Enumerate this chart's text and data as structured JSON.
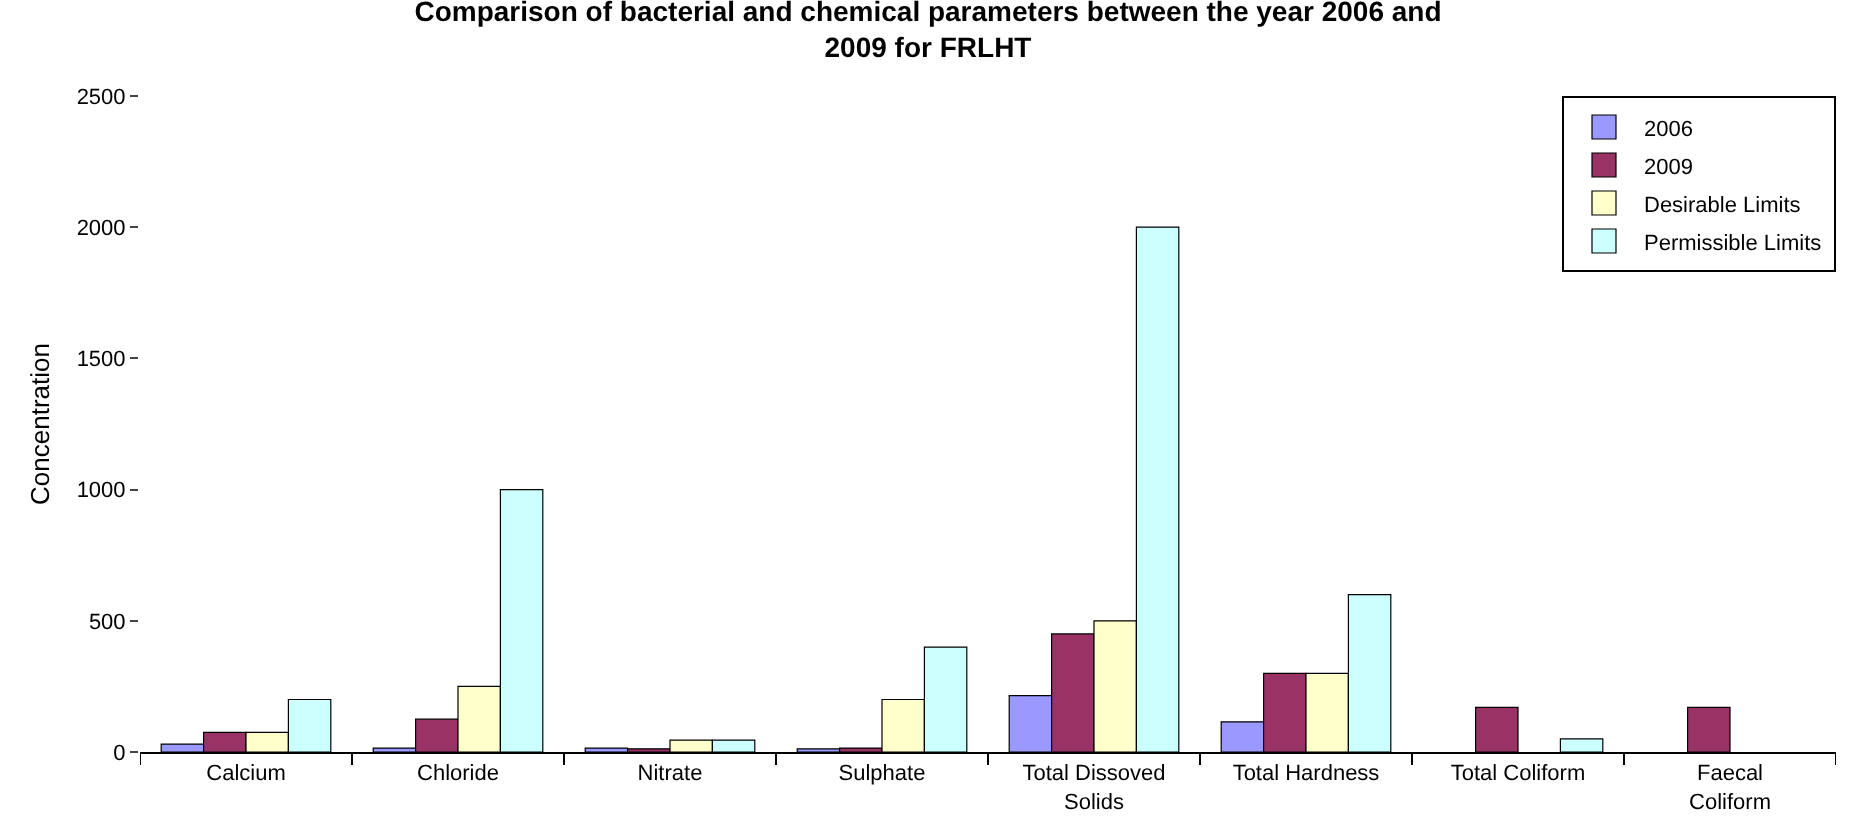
{
  "chart_data": {
    "type": "bar",
    "title": "Comparison of bacterial and chemical parameters between the year 2006 and 2009 for FRLHT",
    "ylabel": "Concentration",
    "categories": [
      "Calcium",
      "Chloride",
      "Nitrate",
      "Sulphate",
      "Total Dissoved Solids",
      "Total Hardness",
      "Total Coliform",
      "Faecal Coliform"
    ],
    "series": [
      {
        "name": "2006",
        "color": "#9999ff",
        "values": [
          30,
          15,
          15,
          12,
          215,
          115,
          null,
          null
        ]
      },
      {
        "name": "2009",
        "color": "#993366",
        "values": [
          75,
          125,
          12,
          15,
          450,
          300,
          170,
          170
        ]
      },
      {
        "name": "Desirable Limits",
        "color": "#ffffcc",
        "values": [
          75,
          250,
          45,
          200,
          500,
          300,
          null,
          null
        ]
      },
      {
        "name": "Permissible Limits",
        "color": "#ccffff",
        "values": [
          200,
          1000,
          45,
          400,
          2000,
          600,
          50,
          null
        ]
      }
    ],
    "ylim": [
      0,
      2500
    ],
    "yticks": [
      0,
      500,
      1000,
      1500,
      2000,
      2500
    ],
    "grid": false,
    "legend": "top right"
  }
}
